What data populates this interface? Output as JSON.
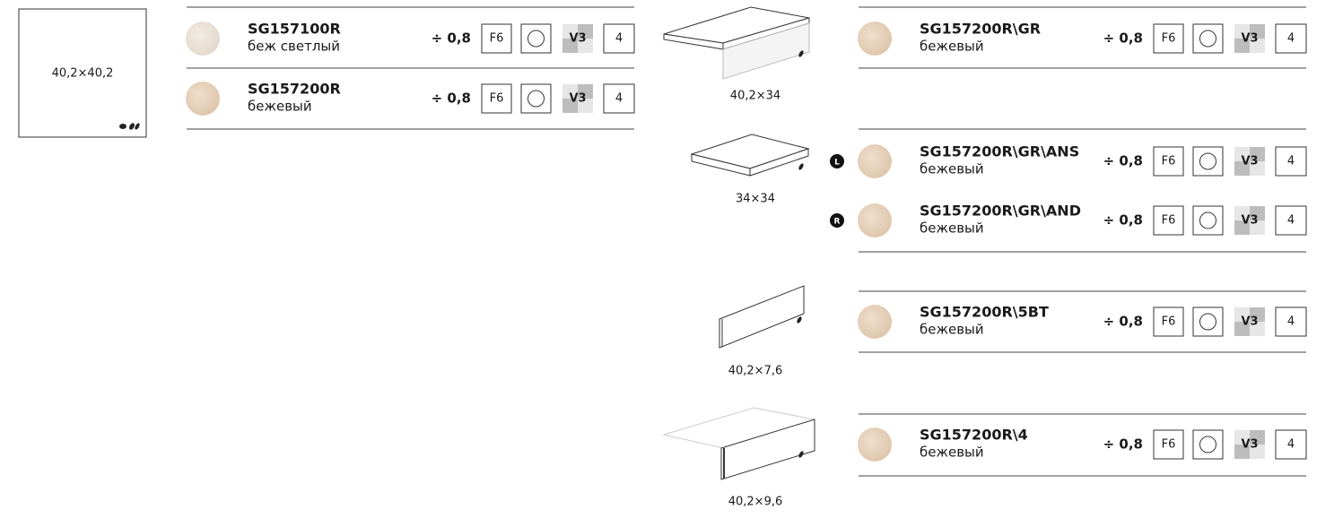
{
  "tile": {
    "size": "40,2×40,2"
  },
  "left_rows": [
    {
      "code": "SG157100R",
      "color": "беж светлый",
      "thickness": "÷ 0,8",
      "finish": "F6",
      "shade": "V3",
      "pack": "4"
    },
    {
      "code": "SG157200R",
      "color": "бежевый",
      "thickness": "÷ 0,8",
      "finish": "F6",
      "shade": "V3",
      "pack": "4"
    }
  ],
  "pieces": [
    {
      "size": "40,2×34",
      "rows": [
        {
          "code": "SG157200R\\GR",
          "color": "бежевый",
          "thickness": "÷ 0,8",
          "finish": "F6",
          "shade": "V3",
          "pack": "4"
        }
      ]
    },
    {
      "size": "34×34",
      "rows": [
        {
          "badge": "L",
          "code": "SG157200R\\GR\\ANS",
          "color": "бежевый",
          "thickness": "÷ 0,8",
          "finish": "F6",
          "shade": "V3",
          "pack": "4"
        },
        {
          "badge": "R",
          "code": "SG157200R\\GR\\AND",
          "color": "бежевый",
          "thickness": "÷ 0,8",
          "finish": "F6",
          "shade": "V3",
          "pack": "4"
        }
      ]
    },
    {
      "size": "40,2×7,6",
      "rows": [
        {
          "code": "SG157200R\\5BT",
          "color": "бежевый",
          "thickness": "÷ 0,8",
          "finish": "F6",
          "shade": "V3",
          "pack": "4"
        }
      ]
    },
    {
      "size": "40,2×9,6",
      "rows": [
        {
          "code": "SG157200R\\4",
          "color": "бежевый",
          "thickness": "÷ 0,8",
          "finish": "F6",
          "shade": "V3",
          "pack": "4"
        }
      ]
    }
  ]
}
